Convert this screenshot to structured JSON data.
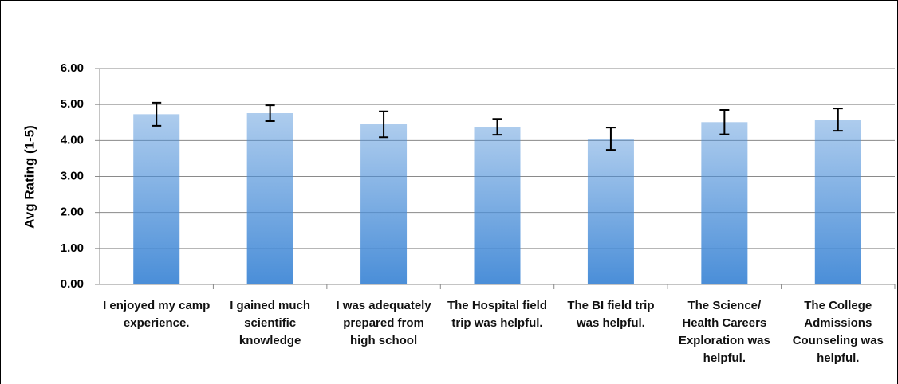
{
  "chart_data": {
    "type": "bar",
    "y_label": "Avg Rating (1-5)",
    "categories": [
      "I enjoyed my camp experience.",
      "I gained much scientific knowledge",
      "I was adequately prepared from high school",
      "The Hospital field trip was helpful.",
      "The BI field trip was helpful.",
      "The Science/ Health Careers Exploration was helpful.",
      "The College Admissions Counseling was helpful."
    ],
    "values": [
      4.73,
      4.76,
      4.45,
      4.38,
      4.05,
      4.51,
      4.58
    ],
    "errors": [
      0.32,
      0.22,
      0.36,
      0.22,
      0.31,
      0.34,
      0.31
    ],
    "color": "#4a8ed8",
    "ylim": [
      0,
      6
    ],
    "yticks": [
      {
        "value": 0,
        "label": "0.00"
      },
      {
        "value": 1,
        "label": "1.00"
      },
      {
        "value": 2,
        "label": "2.00"
      },
      {
        "value": 3,
        "label": "3.00"
      },
      {
        "value": 4,
        "label": "4.00"
      },
      {
        "value": 5,
        "label": "5.00"
      },
      {
        "value": 6,
        "label": "6.00"
      }
    ],
    "grid": true
  }
}
